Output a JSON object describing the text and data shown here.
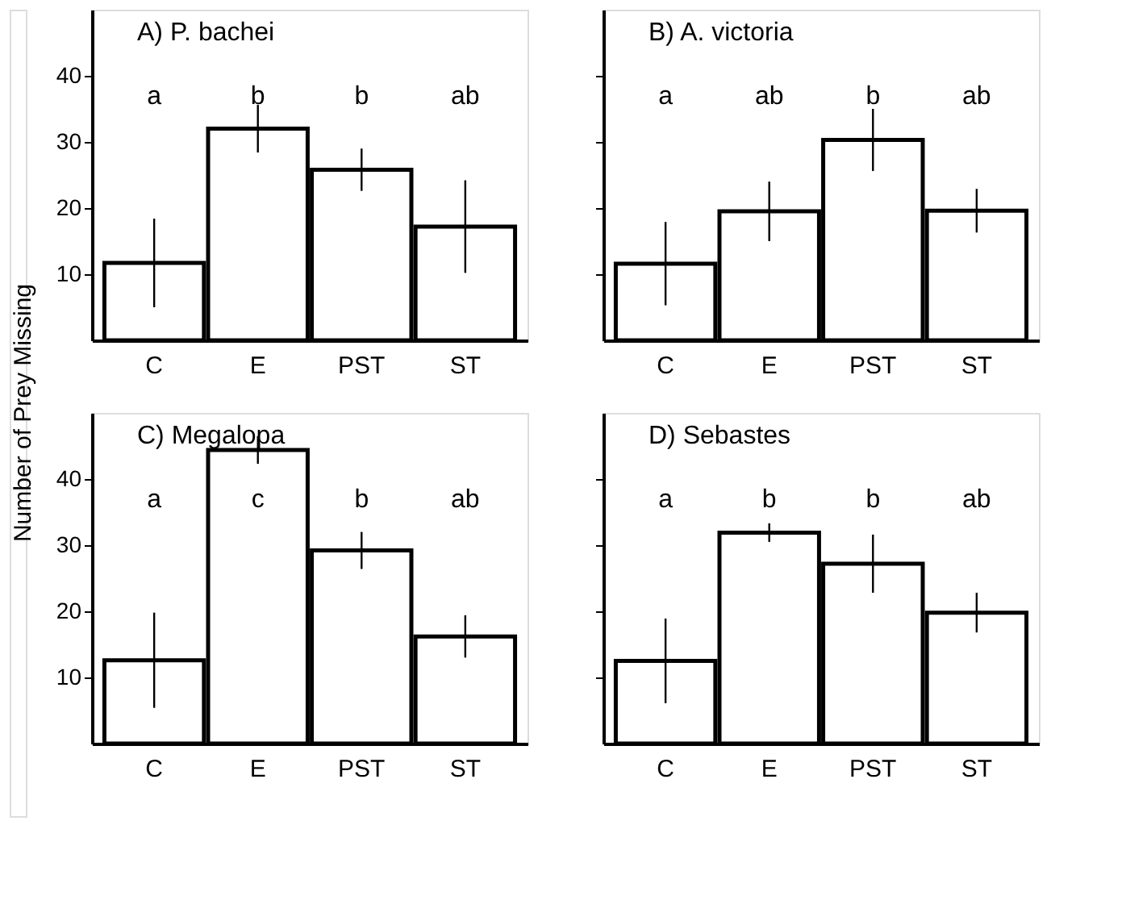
{
  "chart_data": [
    {
      "type": "bar",
      "title": "A) P. bachei",
      "ylabel": "Number of Prey Missing",
      "categories": [
        "C",
        "E",
        "PST",
        "ST"
      ],
      "values": [
        11.7,
        32,
        25.8,
        17.2
      ],
      "errors": [
        6.7,
        3.6,
        3.2,
        7
      ],
      "color": "#000000",
      "ylim": [
        0,
        50
      ],
      "yticks": [
        10,
        20,
        30,
        40
      ],
      "grid": false,
      "annotations": [
        "a",
        "b",
        "b",
        "ab"
      ]
    },
    {
      "type": "bar",
      "title": "B) A. victoria",
      "categories": [
        "C",
        "E",
        "PST",
        "ST"
      ],
      "values": [
        11.6,
        19.5,
        30.3,
        19.6
      ],
      "errors": [
        6.3,
        4.5,
        4.7,
        3.3
      ],
      "color": "#000000",
      "ylim": [
        0,
        50
      ],
      "yticks": [
        10,
        20,
        30,
        40
      ],
      "grid": false,
      "tick_labels": "x",
      "annotations": [
        "a",
        "ab",
        "b",
        "ab"
      ]
    },
    {
      "type": "bar",
      "title": "C) Megalopa",
      "categories": [
        "C",
        "E",
        "PST",
        "ST"
      ],
      "values": [
        12.6,
        44.4,
        29.2,
        16.2
      ],
      "errors": [
        7.2,
        2.1,
        2.8,
        3.2
      ],
      "color": "#000000",
      "ylim": [
        0,
        50
      ],
      "yticks": [
        10,
        20,
        30,
        40
      ],
      "grid": false,
      "annotations": [
        "a",
        "c",
        "b",
        "ab"
      ]
    },
    {
      "type": "bar",
      "title": "D) Sebastes",
      "categories": [
        "C",
        "E",
        "PST",
        "ST"
      ],
      "values": [
        12.5,
        31.9,
        27.2,
        19.8
      ],
      "errors": [
        6.4,
        1.4,
        4.4,
        3
      ],
      "color": "#000000",
      "ylim": [
        0,
        50
      ],
      "yticks": [
        10,
        20,
        30,
        40
      ],
      "grid": false,
      "tick_labels": "x",
      "annotations": [
        "a",
        "b",
        "b",
        "ab"
      ]
    }
  ]
}
